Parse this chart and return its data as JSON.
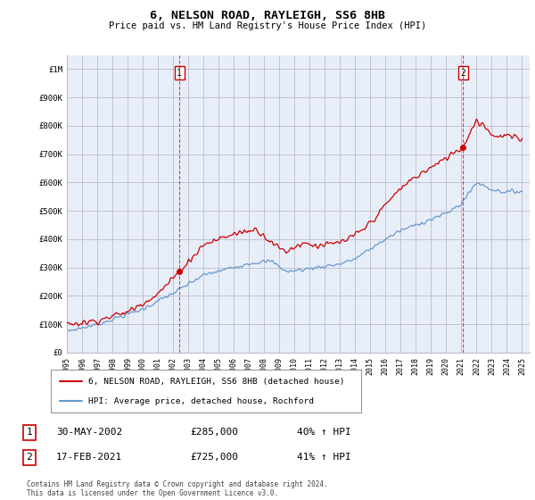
{
  "title": "6, NELSON ROAD, RAYLEIGH, SS6 8HB",
  "subtitle": "Price paid vs. HM Land Registry's House Price Index (HPI)",
  "background_color": "#e8eef8",
  "plot_bg": "#e8eef8",
  "red_line_color": "#cc0000",
  "blue_line_color": "#6699cc",
  "vline_color": "#cc0000",
  "grid_color": "#bbbbcc",
  "legend_label_red": "6, NELSON ROAD, RAYLEIGH, SS6 8HB (detached house)",
  "legend_label_blue": "HPI: Average price, detached house, Rochford",
  "transaction1_date": "30-MAY-2002",
  "transaction1_price": "£285,000",
  "transaction1_hpi": "40% ↑ HPI",
  "transaction1_year": 2002.42,
  "transaction2_date": "17-FEB-2021",
  "transaction2_price": "£725,000",
  "transaction2_hpi": "41% ↑ HPI",
  "transaction2_year": 2021.12,
  "footnote": "Contains HM Land Registry data © Crown copyright and database right 2024.\nThis data is licensed under the Open Government Licence v3.0.",
  "ylim": [
    0,
    1050000
  ],
  "xlim_start": 1995.0,
  "xlim_end": 2025.5,
  "yticks": [
    0,
    100000,
    200000,
    300000,
    400000,
    500000,
    600000,
    700000,
    800000,
    900000,
    1000000
  ],
  "ytick_labels": [
    "£0",
    "£100K",
    "£200K",
    "£300K",
    "£400K",
    "£500K",
    "£600K",
    "£700K",
    "£800K",
    "£900K",
    "£1M"
  ],
  "xticks": [
    1995,
    1996,
    1997,
    1998,
    1999,
    2000,
    2001,
    2002,
    2003,
    2004,
    2005,
    2006,
    2007,
    2008,
    2009,
    2010,
    2011,
    2012,
    2013,
    2014,
    2015,
    2016,
    2017,
    2018,
    2019,
    2020,
    2021,
    2022,
    2023,
    2024,
    2025
  ]
}
